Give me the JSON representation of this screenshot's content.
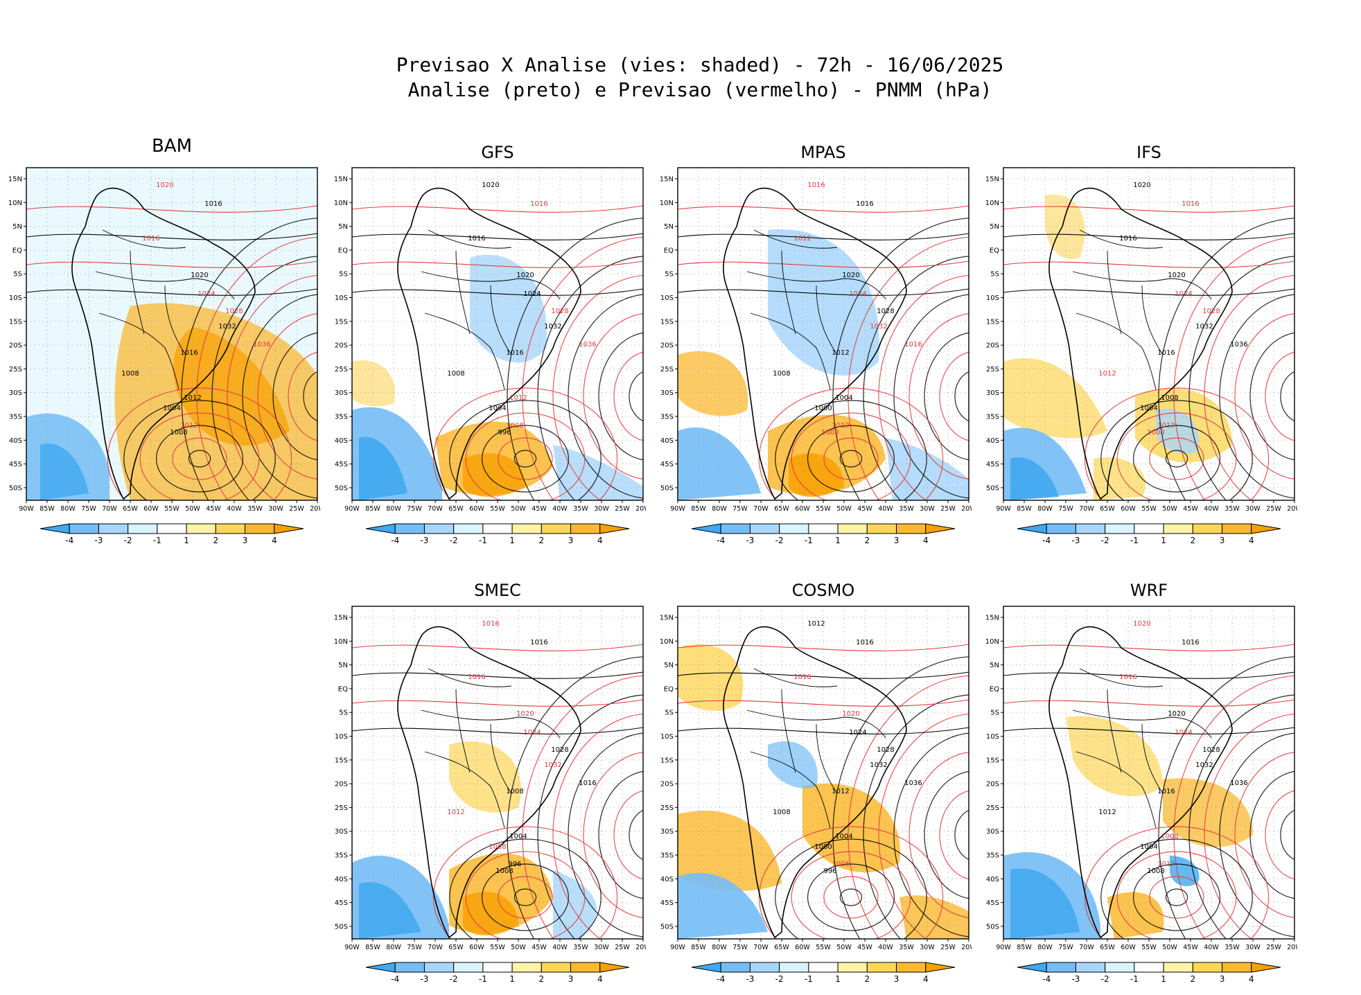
{
  "title": {
    "line1": "Previsao X Analise (vies: shaded) - 72h - 16/06/2025",
    "line2": "Analise (preto) e Previsao (vermelho) - PNMM (hPa)"
  },
  "axes": {
    "lat_labels": [
      "15N",
      "10N",
      "5N",
      "EQ",
      "5S",
      "10S",
      "15S",
      "20S",
      "25S",
      "30S",
      "35S",
      "40S",
      "45S",
      "50S"
    ],
    "lon_labels": [
      "90W",
      "85W",
      "80W",
      "75W",
      "70W",
      "65W",
      "60W",
      "55W",
      "50W",
      "45W",
      "40W",
      "35W",
      "30W",
      "25W",
      "20W"
    ]
  },
  "colorbar": {
    "labels": [
      "-4",
      "-3",
      "-2",
      "-1",
      "1",
      "2",
      "3",
      "4"
    ],
    "colors": [
      "#3fa8f0",
      "#74bdf6",
      "#a8d6fb",
      "#d9f4fd",
      "#ffffff",
      "#fff3a8",
      "#fcd658",
      "#fbb830",
      "#f8a000"
    ]
  },
  "colors": {
    "analysis": "#000000",
    "forecast": "#e03c3c",
    "grid": "#a0a0a0"
  },
  "panels": [
    {
      "name": "BAM",
      "isobars": [
        {
          "value": "1020",
          "color": "forecast"
        },
        {
          "value": "1016",
          "color": "analysis"
        },
        {
          "value": "1016",
          "color": "forecast"
        },
        {
          "value": "1020",
          "color": "analysis"
        },
        {
          "value": "1024",
          "color": "forecast"
        },
        {
          "value": "1028",
          "color": "forecast"
        },
        {
          "value": "1032",
          "color": "analysis"
        },
        {
          "value": "1036",
          "color": "forecast"
        },
        {
          "value": "1016",
          "color": "analysis"
        },
        {
          "value": "1008",
          "color": "analysis"
        },
        {
          "value": "1012",
          "color": "analysis"
        },
        {
          "value": "1004",
          "color": "analysis"
        },
        {
          "value": "1012",
          "color": "forecast"
        },
        {
          "value": "1008",
          "color": "analysis"
        }
      ]
    },
    {
      "name": "GFS",
      "isobars": [
        {
          "value": "1020",
          "color": "analysis"
        },
        {
          "value": "1016",
          "color": "forecast"
        },
        {
          "value": "1016",
          "color": "analysis"
        },
        {
          "value": "1020",
          "color": "analysis"
        },
        {
          "value": "1024",
          "color": "analysis"
        },
        {
          "value": "1028",
          "color": "forecast"
        },
        {
          "value": "1032",
          "color": "analysis"
        },
        {
          "value": "1036",
          "color": "forecast"
        },
        {
          "value": "1016",
          "color": "analysis"
        },
        {
          "value": "1008",
          "color": "analysis"
        },
        {
          "value": "1012",
          "color": "forecast"
        },
        {
          "value": "1004",
          "color": "analysis"
        },
        {
          "value": "1008",
          "color": "forecast"
        },
        {
          "value": "996",
          "color": "analysis"
        }
      ]
    },
    {
      "name": "MPAS",
      "isobars": [
        {
          "value": "1016",
          "color": "forecast"
        },
        {
          "value": "1016",
          "color": "analysis"
        },
        {
          "value": "1012",
          "color": "forecast"
        },
        {
          "value": "1020",
          "color": "analysis"
        },
        {
          "value": "1024",
          "color": "forecast"
        },
        {
          "value": "1028",
          "color": "analysis"
        },
        {
          "value": "1032",
          "color": "forecast"
        },
        {
          "value": "1016",
          "color": "forecast"
        },
        {
          "value": "1012",
          "color": "analysis"
        },
        {
          "value": "1008",
          "color": "analysis"
        },
        {
          "value": "1004",
          "color": "analysis"
        },
        {
          "value": "1000",
          "color": "analysis"
        },
        {
          "value": "1012",
          "color": "forecast"
        },
        {
          "value": "1008",
          "color": "forecast"
        }
      ]
    },
    {
      "name": "IFS",
      "isobars": [
        {
          "value": "1020",
          "color": "analysis"
        },
        {
          "value": "1016",
          "color": "forecast"
        },
        {
          "value": "1016",
          "color": "analysis"
        },
        {
          "value": "1020",
          "color": "analysis"
        },
        {
          "value": "1024",
          "color": "forecast"
        },
        {
          "value": "1028",
          "color": "forecast"
        },
        {
          "value": "1032",
          "color": "analysis"
        },
        {
          "value": "1036",
          "color": "analysis"
        },
        {
          "value": "1016",
          "color": "analysis"
        },
        {
          "value": "1012",
          "color": "forecast"
        },
        {
          "value": "1008",
          "color": "analysis"
        },
        {
          "value": "1004",
          "color": "analysis"
        },
        {
          "value": "1012",
          "color": "forecast"
        },
        {
          "value": "1008",
          "color": "forecast"
        }
      ]
    },
    {
      "name": "SMEC",
      "isobars": [
        {
          "value": "1016",
          "color": "forecast"
        },
        {
          "value": "1016",
          "color": "analysis"
        },
        {
          "value": "1016",
          "color": "forecast"
        },
        {
          "value": "1020",
          "color": "forecast"
        },
        {
          "value": "1024",
          "color": "forecast"
        },
        {
          "value": "1028",
          "color": "analysis"
        },
        {
          "value": "1032",
          "color": "forecast"
        },
        {
          "value": "1016",
          "color": "analysis"
        },
        {
          "value": "1008",
          "color": "analysis"
        },
        {
          "value": "1012",
          "color": "forecast"
        },
        {
          "value": "1004",
          "color": "analysis"
        },
        {
          "value": "1008",
          "color": "forecast"
        },
        {
          "value": "996",
          "color": "analysis"
        },
        {
          "value": "1008",
          "color": "analysis"
        }
      ]
    },
    {
      "name": "COSMO",
      "isobars": [
        {
          "value": "1012",
          "color": "analysis"
        },
        {
          "value": "1016",
          "color": "analysis"
        },
        {
          "value": "1016",
          "color": "forecast"
        },
        {
          "value": "1020",
          "color": "forecast"
        },
        {
          "value": "1024",
          "color": "analysis"
        },
        {
          "value": "1028",
          "color": "analysis"
        },
        {
          "value": "1032",
          "color": "analysis"
        },
        {
          "value": "1036",
          "color": "analysis"
        },
        {
          "value": "1012",
          "color": "analysis"
        },
        {
          "value": "1008",
          "color": "analysis"
        },
        {
          "value": "1004",
          "color": "analysis"
        },
        {
          "value": "1000",
          "color": "analysis"
        },
        {
          "value": "1008",
          "color": "forecast"
        },
        {
          "value": "996",
          "color": "analysis"
        }
      ]
    },
    {
      "name": "WRF",
      "isobars": [
        {
          "value": "1020",
          "color": "forecast"
        },
        {
          "value": "1016",
          "color": "analysis"
        },
        {
          "value": "1016",
          "color": "forecast"
        },
        {
          "value": "1020",
          "color": "analysis"
        },
        {
          "value": "1024",
          "color": "forecast"
        },
        {
          "value": "1028",
          "color": "analysis"
        },
        {
          "value": "1032",
          "color": "analysis"
        },
        {
          "value": "1036",
          "color": "analysis"
        },
        {
          "value": "1016",
          "color": "analysis"
        },
        {
          "value": "1012",
          "color": "analysis"
        },
        {
          "value": "1008",
          "color": "forecast"
        },
        {
          "value": "1004",
          "color": "analysis"
        },
        {
          "value": "1012",
          "color": "forecast"
        },
        {
          "value": "1008",
          "color": "analysis"
        }
      ]
    }
  ]
}
